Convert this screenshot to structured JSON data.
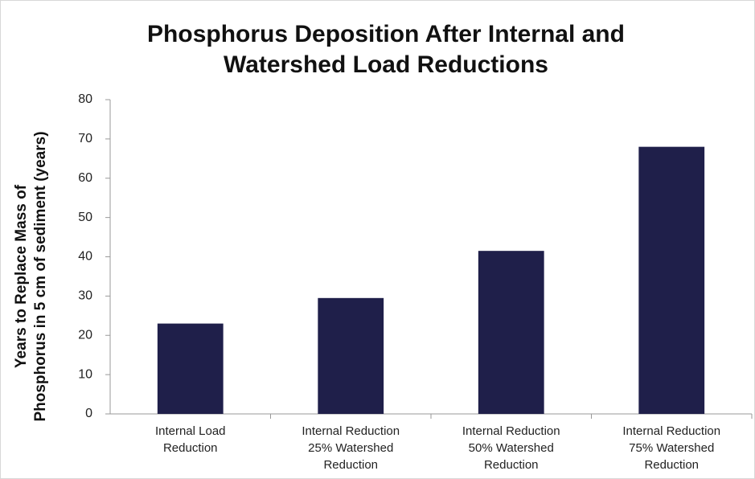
{
  "chart_data": {
    "type": "bar",
    "title": "Phosphorus Deposition After Internal and\nWatershed Load Reductions",
    "y_label": "Years to Replace Mass of\nPhosphorus in 5 cm of sediment (years)",
    "categories": [
      "Internal Load\nReduction",
      "Internal Reduction\n25% Watershed\nReduction",
      "Internal Reduction\n50% Watershed\nReduction",
      "Internal Reduction\n75% Watershed\nReduction"
    ],
    "values": [
      23,
      29.5,
      41.5,
      68
    ],
    "color": "#1f1f4a",
    "ylim": [
      0,
      80
    ],
    "yticks": [
      0,
      10,
      20,
      30,
      40,
      50,
      60,
      70,
      80
    ],
    "grid": false
  }
}
